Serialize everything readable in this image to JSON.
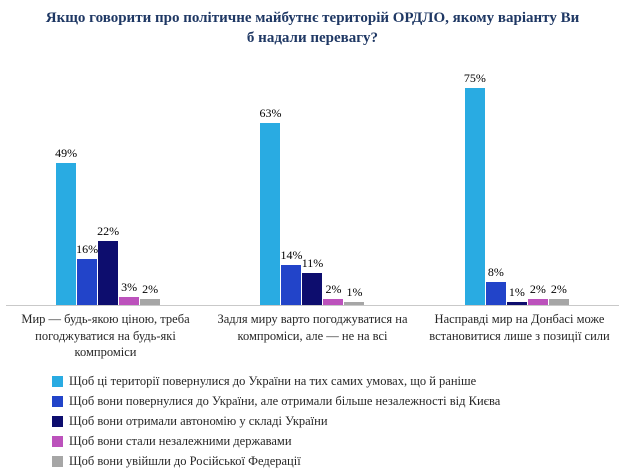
{
  "chart_data": {
    "type": "bar",
    "title": "Якщо говорити про політичне майбутнє територій ОРДЛО, якому варіанту Ви б надали перевагу?",
    "categories": [
      "Мир — будь-якою ціною, треба погоджуватися на будь-які компроміси",
      "Задля миру варто погоджуватися на компроміси, але — не на всі",
      "Насправді мир на Донбасі може встановитися лише з позиції сили"
    ],
    "series": [
      {
        "name": "Щоб ці території повернулися до України на тих самих умовах, що й раніше",
        "color": "#29ABE2",
        "values": [
          49,
          63,
          75
        ]
      },
      {
        "name": "Щоб вони повернулися до України, але отримали більше незалежності від Києва",
        "color": "#2244C9",
        "values": [
          16,
          14,
          8
        ]
      },
      {
        "name": "Щоб вони отримали автономію у складі України",
        "color": "#0D0D6E",
        "values": [
          22,
          11,
          1
        ]
      },
      {
        "name": "Щоб вони стали незалежними державами",
        "color": "#BC52BC",
        "values": [
          3,
          2,
          2
        ]
      },
      {
        "name": "Щоб вони увійшли до Російської Федерації",
        "color": "#A6A6A6",
        "values": [
          2,
          1,
          2
        ]
      }
    ],
    "value_suffix": "%",
    "ylim": [
      0,
      80
    ],
    "grid": false,
    "legend_position": "bottom"
  }
}
